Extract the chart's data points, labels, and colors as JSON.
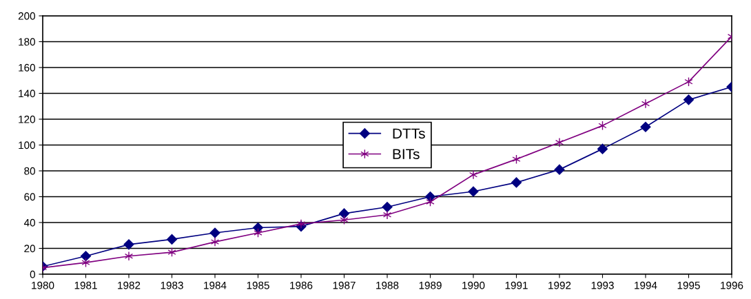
{
  "chart_data": {
    "type": "line",
    "categories": [
      "1980",
      "1981",
      "1982",
      "1983",
      "1984",
      "1985",
      "1986",
      "1987",
      "1988",
      "1989",
      "1990",
      "1991",
      "1992",
      "1993",
      "1994",
      "1995",
      "1996"
    ],
    "series": [
      {
        "name": "DTTs",
        "color": "#000080",
        "marker": "diamond",
        "values": [
          6,
          14,
          23,
          27,
          32,
          36,
          37,
          47,
          52,
          60,
          64,
          71,
          81,
          97,
          114,
          135,
          145
        ]
      },
      {
        "name": "BITs",
        "color": "#800080",
        "marker": "cross",
        "values": [
          5,
          9,
          14,
          17,
          25,
          32,
          39,
          42,
          46,
          56,
          77,
          89,
          102,
          115,
          132,
          149,
          184
        ]
      }
    ],
    "ylim": [
      0,
      200
    ],
    "yticks": [
      0,
      20,
      40,
      60,
      80,
      100,
      120,
      140,
      160,
      180,
      200
    ],
    "grid": "y",
    "legend": "center",
    "line_style": "solid"
  }
}
